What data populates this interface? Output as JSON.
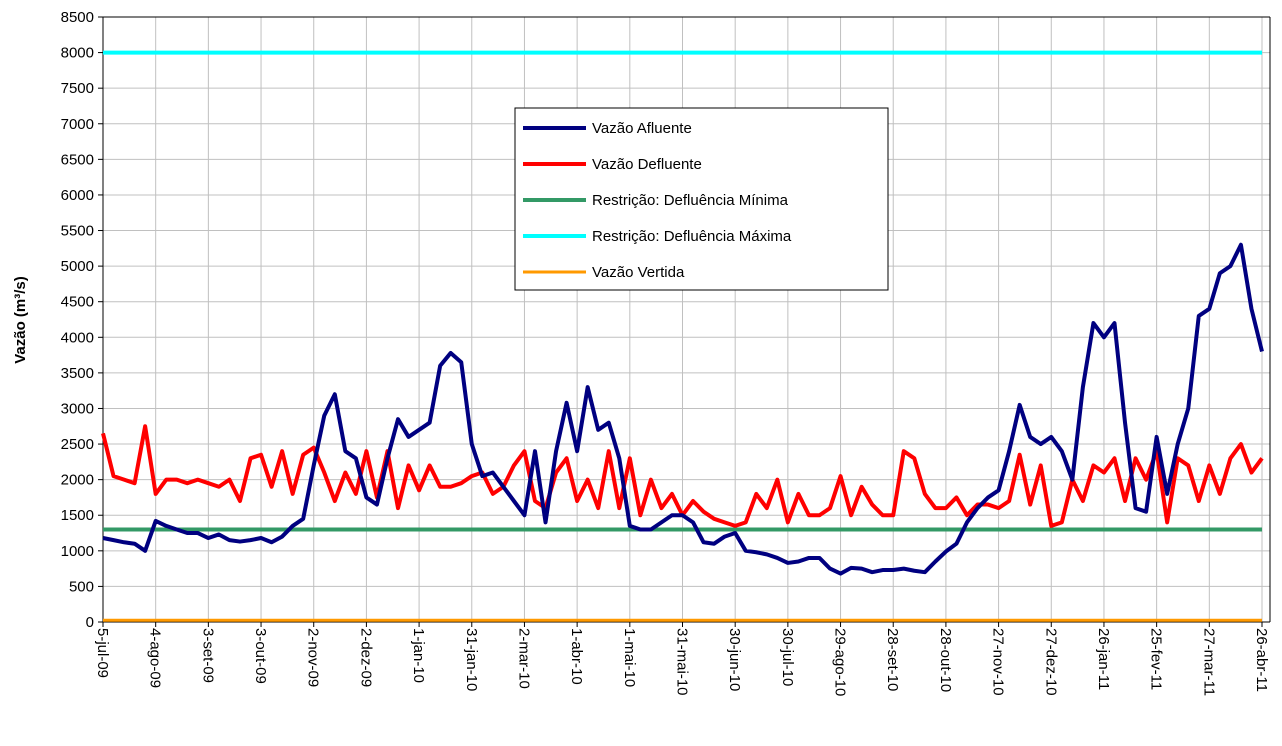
{
  "chart_data": {
    "type": "line",
    "y_label": "Vazão (m³/s)",
    "categories": [
      "5-jul-09",
      null,
      null,
      null,
      null,
      "4-ago-09",
      null,
      null,
      null,
      null,
      "3-set-09",
      null,
      null,
      null,
      null,
      "3-out-09",
      null,
      null,
      null,
      null,
      "2-nov-09",
      null,
      null,
      null,
      null,
      "2-dez-09",
      null,
      null,
      null,
      null,
      "1-jan-10",
      null,
      null,
      null,
      null,
      "31-jan-10",
      null,
      null,
      null,
      null,
      "2-mar-10",
      null,
      null,
      null,
      null,
      "1-abr-10",
      null,
      null,
      null,
      null,
      "1-mai-10",
      null,
      null,
      null,
      null,
      "31-mai-10",
      null,
      null,
      null,
      null,
      "30-jun-10",
      null,
      null,
      null,
      null,
      "30-jul-10",
      null,
      null,
      null,
      null,
      "29-ago-10",
      null,
      null,
      null,
      null,
      "28-set-10",
      null,
      null,
      null,
      null,
      "28-out-10",
      null,
      null,
      null,
      null,
      "27-nov-10",
      null,
      null,
      null,
      null,
      "27-dez-10",
      null,
      null,
      null,
      null,
      "26-jan-11",
      null,
      null,
      null,
      null,
      "25-fev-11",
      null,
      null,
      null,
      null,
      "27-mar-11",
      null,
      null,
      null,
      null,
      "26-abr-11"
    ],
    "series": [
      {
        "name": "Vazão Afluente",
        "color": "#000080",
        "width": 4,
        "values": [
          1180,
          1150,
          1120,
          1100,
          1000,
          1420,
          1350,
          1300,
          1250,
          1250,
          1180,
          1230,
          1150,
          1130,
          1150,
          1180,
          1120,
          1200,
          1350,
          1450,
          2200,
          2900,
          3200,
          2400,
          2300,
          1750,
          1650,
          2300,
          2850,
          2600,
          2700,
          2800,
          3600,
          3780,
          3650,
          2500,
          2050,
          2100,
          1900,
          1700,
          1500,
          2400,
          1400,
          2400,
          3080,
          2400,
          3300,
          2700,
          2800,
          2300,
          1350,
          1300,
          1300,
          1400,
          1500,
          1500,
          1400,
          1120,
          1100,
          1200,
          1250,
          1000,
          980,
          950,
          900,
          830,
          850,
          900,
          900,
          750,
          680,
          760,
          750,
          700,
          730,
          730,
          750,
          720,
          700,
          850,
          990,
          1100,
          1400,
          1600,
          1750,
          1850,
          2400,
          3050,
          2600,
          2500,
          2600,
          2400,
          2000,
          3300,
          4200,
          4000,
          4200,
          2800,
          1600,
          1550,
          2600,
          1800,
          2500,
          3000,
          4300,
          4400,
          4900,
          5000,
          5300,
          4400,
          3800
        ]
      },
      {
        "name": "Vazão Defluente",
        "color": "#ff0000",
        "width": 4,
        "values": [
          2650,
          2050,
          2000,
          1950,
          2750,
          1800,
          2000,
          2000,
          1950,
          2000,
          1950,
          1900,
          2000,
          1700,
          2300,
          2350,
          1900,
          2400,
          1800,
          2350,
          2450,
          2100,
          1700,
          2100,
          1800,
          2400,
          1750,
          2400,
          1600,
          2200,
          1850,
          2200,
          1900,
          1900,
          1950,
          2050,
          2100,
          1800,
          1900,
          2200,
          2400,
          1700,
          1600,
          2100,
          2300,
          1700,
          2000,
          1600,
          2400,
          1600,
          2300,
          1500,
          2000,
          1600,
          1800,
          1500,
          1700,
          1550,
          1450,
          1400,
          1350,
          1400,
          1800,
          1600,
          2000,
          1400,
          1800,
          1500,
          1500,
          1600,
          2050,
          1500,
          1900,
          1650,
          1500,
          1500,
          2400,
          2300,
          1800,
          1600,
          1600,
          1750,
          1500,
          1650,
          1650,
          1600,
          1700,
          2350,
          1650,
          2200,
          1350,
          1400,
          2000,
          1700,
          2200,
          2100,
          2300,
          1700,
          2300,
          2000,
          2400,
          1400,
          2300,
          2200,
          1700,
          2200,
          1800,
          2300,
          2500,
          2100,
          2300
        ]
      },
      {
        "name": "Restrição: Defluência Mínima",
        "color": "#339966",
        "width": 4,
        "values": [
          1300,
          1300,
          1300,
          1300,
          1300,
          1300,
          1300,
          1300,
          1300,
          1300,
          1300,
          1300,
          1300,
          1300,
          1300,
          1300,
          1300,
          1300,
          1300,
          1300,
          1300,
          1300,
          1300,
          1300,
          1300,
          1300,
          1300,
          1300,
          1300,
          1300,
          1300,
          1300,
          1300,
          1300,
          1300,
          1300,
          1300,
          1300,
          1300,
          1300,
          1300,
          1300,
          1300,
          1300,
          1300,
          1300,
          1300,
          1300,
          1300,
          1300,
          1300,
          1300,
          1300,
          1300,
          1300,
          1300,
          1300,
          1300,
          1300,
          1300,
          1300,
          1300,
          1300,
          1300,
          1300,
          1300,
          1300,
          1300,
          1300,
          1300,
          1300,
          1300,
          1300,
          1300,
          1300,
          1300,
          1300,
          1300,
          1300,
          1300,
          1300,
          1300,
          1300,
          1300,
          1300,
          1300,
          1300,
          1300,
          1300,
          1300,
          1300,
          1300,
          1300,
          1300,
          1300,
          1300,
          1300,
          1300,
          1300,
          1300,
          1300,
          1300,
          1300,
          1300,
          1300,
          1300,
          1300,
          1300,
          1300,
          1300,
          1300
        ]
      },
      {
        "name": "Restrição: Defluência Máxima",
        "color": "#00ffff",
        "width": 4,
        "values": [
          8000,
          8000,
          8000,
          8000,
          8000,
          8000,
          8000,
          8000,
          8000,
          8000,
          8000,
          8000,
          8000,
          8000,
          8000,
          8000,
          8000,
          8000,
          8000,
          8000,
          8000,
          8000,
          8000,
          8000,
          8000,
          8000,
          8000,
          8000,
          8000,
          8000,
          8000,
          8000,
          8000,
          8000,
          8000,
          8000,
          8000,
          8000,
          8000,
          8000,
          8000,
          8000,
          8000,
          8000,
          8000,
          8000,
          8000,
          8000,
          8000,
          8000,
          8000,
          8000,
          8000,
          8000,
          8000,
          8000,
          8000,
          8000,
          8000,
          8000,
          8000,
          8000,
          8000,
          8000,
          8000,
          8000,
          8000,
          8000,
          8000,
          8000,
          8000,
          8000,
          8000,
          8000,
          8000,
          8000,
          8000,
          8000,
          8000,
          8000,
          8000,
          8000,
          8000,
          8000,
          8000,
          8000,
          8000,
          8000,
          8000,
          8000,
          8000,
          8000,
          8000,
          8000,
          8000,
          8000,
          8000,
          8000,
          8000,
          8000,
          8000,
          8000,
          8000,
          8000,
          8000,
          8000,
          8000,
          8000,
          8000,
          8000,
          8000
        ]
      },
      {
        "name": "Vazão Vertida",
        "color": "#ff9900",
        "width": 3,
        "values": [
          25,
          25,
          25,
          25,
          25,
          25,
          25,
          25,
          25,
          25,
          25,
          25,
          25,
          25,
          25,
          25,
          25,
          25,
          25,
          25,
          25,
          25,
          25,
          25,
          25,
          25,
          25,
          25,
          25,
          25,
          25,
          25,
          25,
          25,
          25,
          25,
          25,
          25,
          25,
          25,
          25,
          25,
          25,
          25,
          25,
          25,
          25,
          25,
          25,
          25,
          25,
          25,
          25,
          25,
          25,
          25,
          25,
          25,
          25,
          25,
          25,
          25,
          25,
          25,
          25,
          25,
          25,
          25,
          25,
          25,
          25,
          25,
          25,
          25,
          25,
          25,
          25,
          25,
          25,
          25,
          25,
          25,
          25,
          25,
          25,
          25,
          25,
          25,
          25,
          25,
          25,
          25,
          25,
          25,
          25,
          25,
          25,
          25,
          25,
          25,
          25,
          25,
          25,
          25,
          25,
          25,
          25,
          25,
          25,
          25,
          25
        ]
      }
    ],
    "ylim": [
      0,
      8500
    ],
    "yticks": [
      0,
      500,
      1000,
      1500,
      2000,
      2500,
      3000,
      3500,
      4000,
      4500,
      5000,
      5500,
      6000,
      6500,
      7000,
      7500,
      8000,
      8500
    ],
    "grid": true
  }
}
